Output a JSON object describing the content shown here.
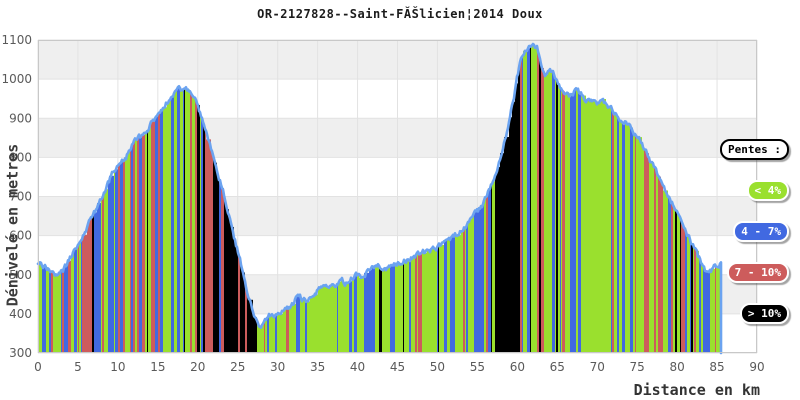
{
  "chart_data": {
    "type": "area",
    "title": "OR-2127828--Saint-FĂŠlicien¦2014 Doux",
    "xlabel": "Distance en km",
    "ylabel": "Dénivelé en metres",
    "legend_title": "Pentes :",
    "legend_position": "right",
    "grid": true,
    "xlim": [
      0,
      90
    ],
    "ylim": [
      300,
      1100
    ],
    "x_ticks": [
      0,
      5,
      10,
      15,
      20,
      25,
      30,
      35,
      40,
      45,
      50,
      55,
      60,
      65,
      70,
      75,
      80,
      85,
      90
    ],
    "y_ticks": [
      300,
      400,
      500,
      600,
      700,
      800,
      900,
      1000,
      1100
    ],
    "slope_legend": [
      {
        "label": "< 4%",
        "color": "#9ae02e"
      },
      {
        "label": "4 - 7%",
        "color": "#4169e1"
      },
      {
        "label": "7 - 10%",
        "color": "#cd5c5c"
      },
      {
        "label": "> 10%",
        "color": "#000000"
      }
    ],
    "colors": {
      "outline": "#6ba3f0",
      "band": "#efefef",
      "grid": "#e2e2e2",
      "border": "#c8c8c8",
      "tick_text": "#5a5a5a"
    },
    "x_step_km": 0.5,
    "x_end_km": 85.5,
    "elevations_m": [
      530,
      527,
      520,
      511,
      505,
      503,
      507,
      522,
      543,
      558,
      572,
      594,
      618,
      637,
      655,
      677,
      700,
      722,
      744,
      766,
      784,
      794,
      801,
      819,
      838,
      847,
      856,
      868,
      881,
      898,
      914,
      927,
      939,
      951,
      962,
      971,
      975,
      973,
      967,
      953,
      929,
      899,
      867,
      834,
      799,
      763,
      726,
      688,
      647,
      604,
      560,
      519,
      477,
      436,
      398,
      374,
      369,
      383,
      396,
      391,
      397,
      404,
      413,
      420,
      428,
      447,
      440,
      432,
      444,
      450,
      459,
      475,
      469,
      463,
      472,
      478,
      484,
      480,
      487,
      493,
      500,
      496,
      503,
      509,
      516,
      528,
      520,
      514,
      518,
      524,
      530,
      534,
      538,
      542,
      547,
      551,
      555,
      559,
      563,
      567,
      571,
      577,
      583,
      590,
      597,
      605,
      614,
      625,
      636,
      649,
      661,
      675,
      691,
      715,
      741,
      773,
      808,
      848,
      893,
      945,
      1005,
      1050,
      1075,
      1086,
      1087,
      1078,
      1042,
      1012,
      1022,
      1012,
      990,
      972,
      960,
      955,
      965,
      972,
      960,
      950,
      953,
      946,
      938,
      948,
      935,
      928,
      920,
      908,
      897,
      889,
      880,
      868,
      855,
      843,
      820,
      795,
      778,
      760,
      745,
      722,
      700,
      678,
      655,
      633,
      612,
      592,
      572,
      552,
      532,
      510,
      500,
      515,
      526,
      532
    ]
  }
}
